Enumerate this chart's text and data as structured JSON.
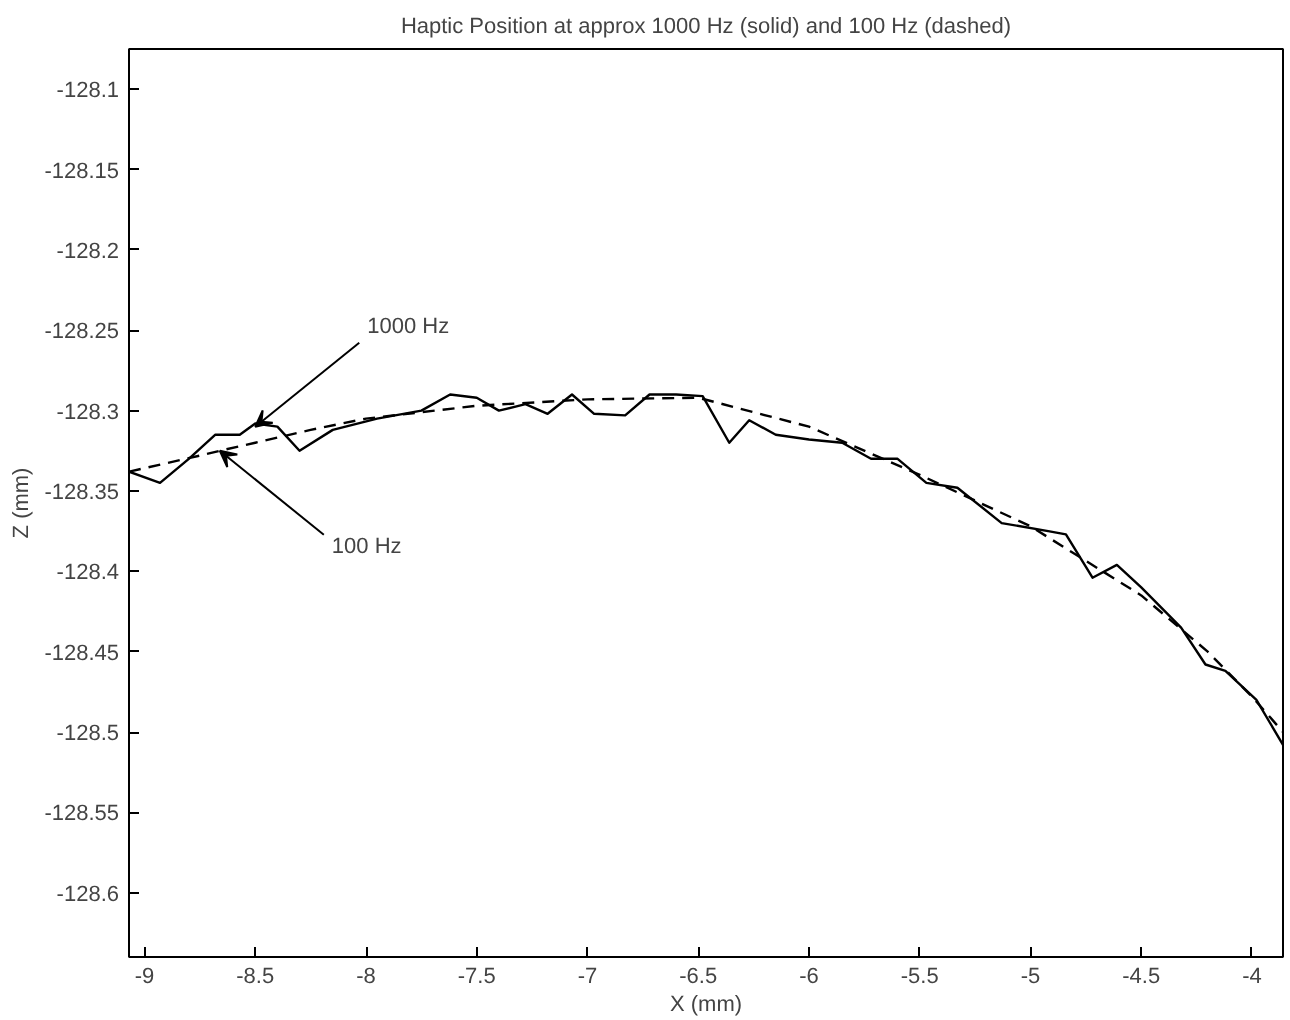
{
  "chart_data": {
    "type": "line",
    "title": "Haptic Position at approx 1000 Hz (solid) and 100 Hz (dashed)",
    "xlabel": "X (mm)",
    "ylabel": "Z (mm)",
    "xlim": [
      -9.07,
      -3.86
    ],
    "ylim": [
      -128.64,
      -128.075
    ],
    "xticks": [
      -9,
      -8.5,
      -8,
      -7.5,
      -7,
      -6.5,
      -6,
      -5.5,
      -5,
      -4.5,
      -4
    ],
    "yticks": [
      -128.1,
      -128.15,
      -128.2,
      -128.25,
      -128.3,
      -128.35,
      -128.4,
      -128.45,
      -128.5,
      -128.55,
      -128.6
    ],
    "grid": false,
    "series": [
      {
        "color": "#000000",
        "line_style": "solid",
        "x": [
          -9.07,
          -8.93,
          -8.8,
          -8.68,
          -8.57,
          -8.5,
          -8.4,
          -8.3,
          -8.15,
          -7.95,
          -7.75,
          -7.62,
          -7.5,
          -7.4,
          -7.28,
          -7.18,
          -7.07,
          -6.97,
          -6.83,
          -6.72,
          -6.6,
          -6.48,
          -6.36,
          -6.27,
          -6.15,
          -6.0,
          -5.85,
          -5.72,
          -5.6,
          -5.47,
          -5.33,
          -5.13,
          -4.92,
          -4.84,
          -4.72,
          -4.61,
          -4.5,
          -4.32,
          -4.21,
          -4.12,
          -3.98,
          -3.86
        ],
        "values": [
          -128.338,
          -128.345,
          -128.33,
          -128.315,
          -128.315,
          -128.308,
          -128.31,
          -128.325,
          -128.312,
          -128.305,
          -128.3,
          -128.29,
          -128.292,
          -128.3,
          -128.296,
          -128.302,
          -128.29,
          -128.302,
          -128.303,
          -128.29,
          -128.29,
          -128.291,
          -128.32,
          -128.306,
          -128.315,
          -128.318,
          -128.32,
          -128.33,
          -128.33,
          -128.345,
          -128.348,
          -128.37,
          -128.375,
          -128.377,
          -128.404,
          -128.396,
          -128.41,
          -128.435,
          -128.458,
          -128.462,
          -128.48,
          -128.508
        ]
      },
      {
        "color": "#000000",
        "line_style": "dashed",
        "x": [
          -9.07,
          -8.75,
          -8.66,
          -8.5,
          -8.25,
          -8.0,
          -7.5,
          -7.0,
          -6.5,
          -6.0,
          -5.5,
          -5.0,
          -4.5,
          -4.2,
          -4.0,
          -3.86
        ],
        "values": [
          -128.338,
          -128.328,
          -128.325,
          -128.32,
          -128.312,
          -128.305,
          -128.297,
          -128.293,
          -128.292,
          -128.31,
          -128.34,
          -128.372,
          -128.415,
          -128.45,
          -128.478,
          -128.5
        ]
      }
    ],
    "annotations": [
      {
        "text": "1000 Hz",
        "x": -8.5,
        "y": -128.31
      },
      {
        "text": "100 Hz",
        "x": -8.66,
        "y": -128.325
      }
    ]
  }
}
